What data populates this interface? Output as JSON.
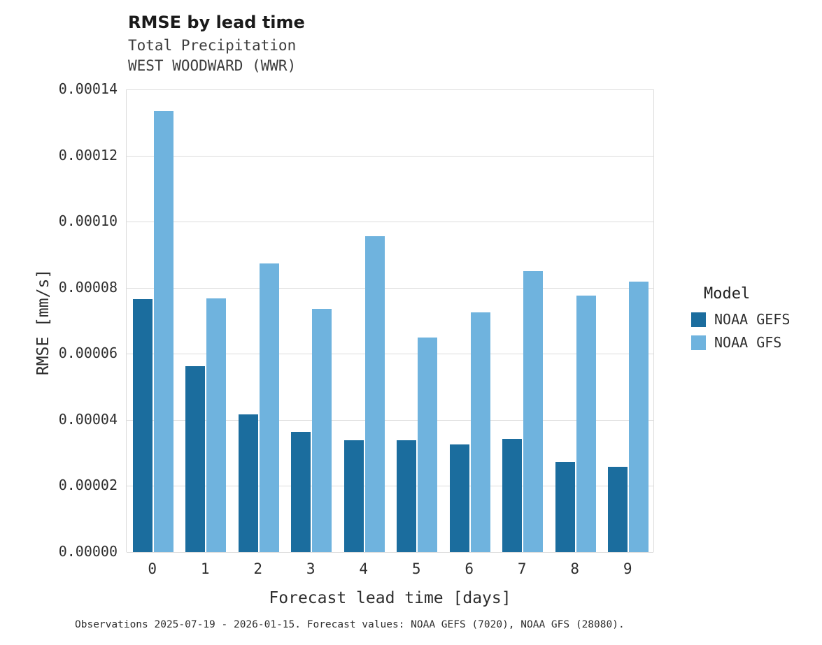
{
  "title": "RMSE by lead time",
  "subtitle1": "Total Precipitation",
  "subtitle2": "WEST WOODWARD (WWR)",
  "caption": "Observations 2025-07-19 - 2026-01-15. Forecast values: NOAA GEFS (7020), NOAA GFS (28080).",
  "legend": {
    "title": "Model",
    "entries": [
      {
        "label": "NOAA GEFS",
        "color": "#1b6d9e"
      },
      {
        "label": "NOAA GFS",
        "color": "#6fb3de"
      }
    ]
  },
  "chart_data": {
    "type": "bar",
    "title": "RMSE by lead time",
    "subtitle": [
      "Total Precipitation",
      "WEST WOODWARD (WWR)"
    ],
    "xlabel": "Forecast lead time [days]",
    "ylabel": "RMSE [mm/s]",
    "categories": [
      "0",
      "1",
      "2",
      "3",
      "4",
      "5",
      "6",
      "7",
      "8",
      "9"
    ],
    "series": [
      {
        "name": "NOAA GEFS",
        "color": "#1b6d9e",
        "values": [
          7.65e-05,
          5.63e-05,
          4.17e-05,
          3.64e-05,
          3.38e-05,
          3.38e-05,
          3.26e-05,
          3.43e-05,
          2.73e-05,
          2.58e-05
        ]
      },
      {
        "name": "NOAA GFS",
        "color": "#6fb3de",
        "values": [
          0.0001335,
          7.68e-05,
          8.73e-05,
          7.36e-05,
          9.55e-05,
          6.49e-05,
          7.25e-05,
          8.5e-05,
          7.76e-05,
          8.18e-05
        ]
      }
    ],
    "ylim": [
      0,
      0.00014
    ],
    "yticks": [
      0.0,
      2e-05,
      4e-05,
      6e-05,
      8e-05,
      0.0001,
      0.00012,
      0.00014
    ],
    "ytick_labels": [
      "0.00000",
      "0.00002",
      "0.00004",
      "0.00006",
      "0.00008",
      "0.00010",
      "0.00012",
      "0.00014"
    ],
    "grid": true,
    "legend_position": "right"
  }
}
